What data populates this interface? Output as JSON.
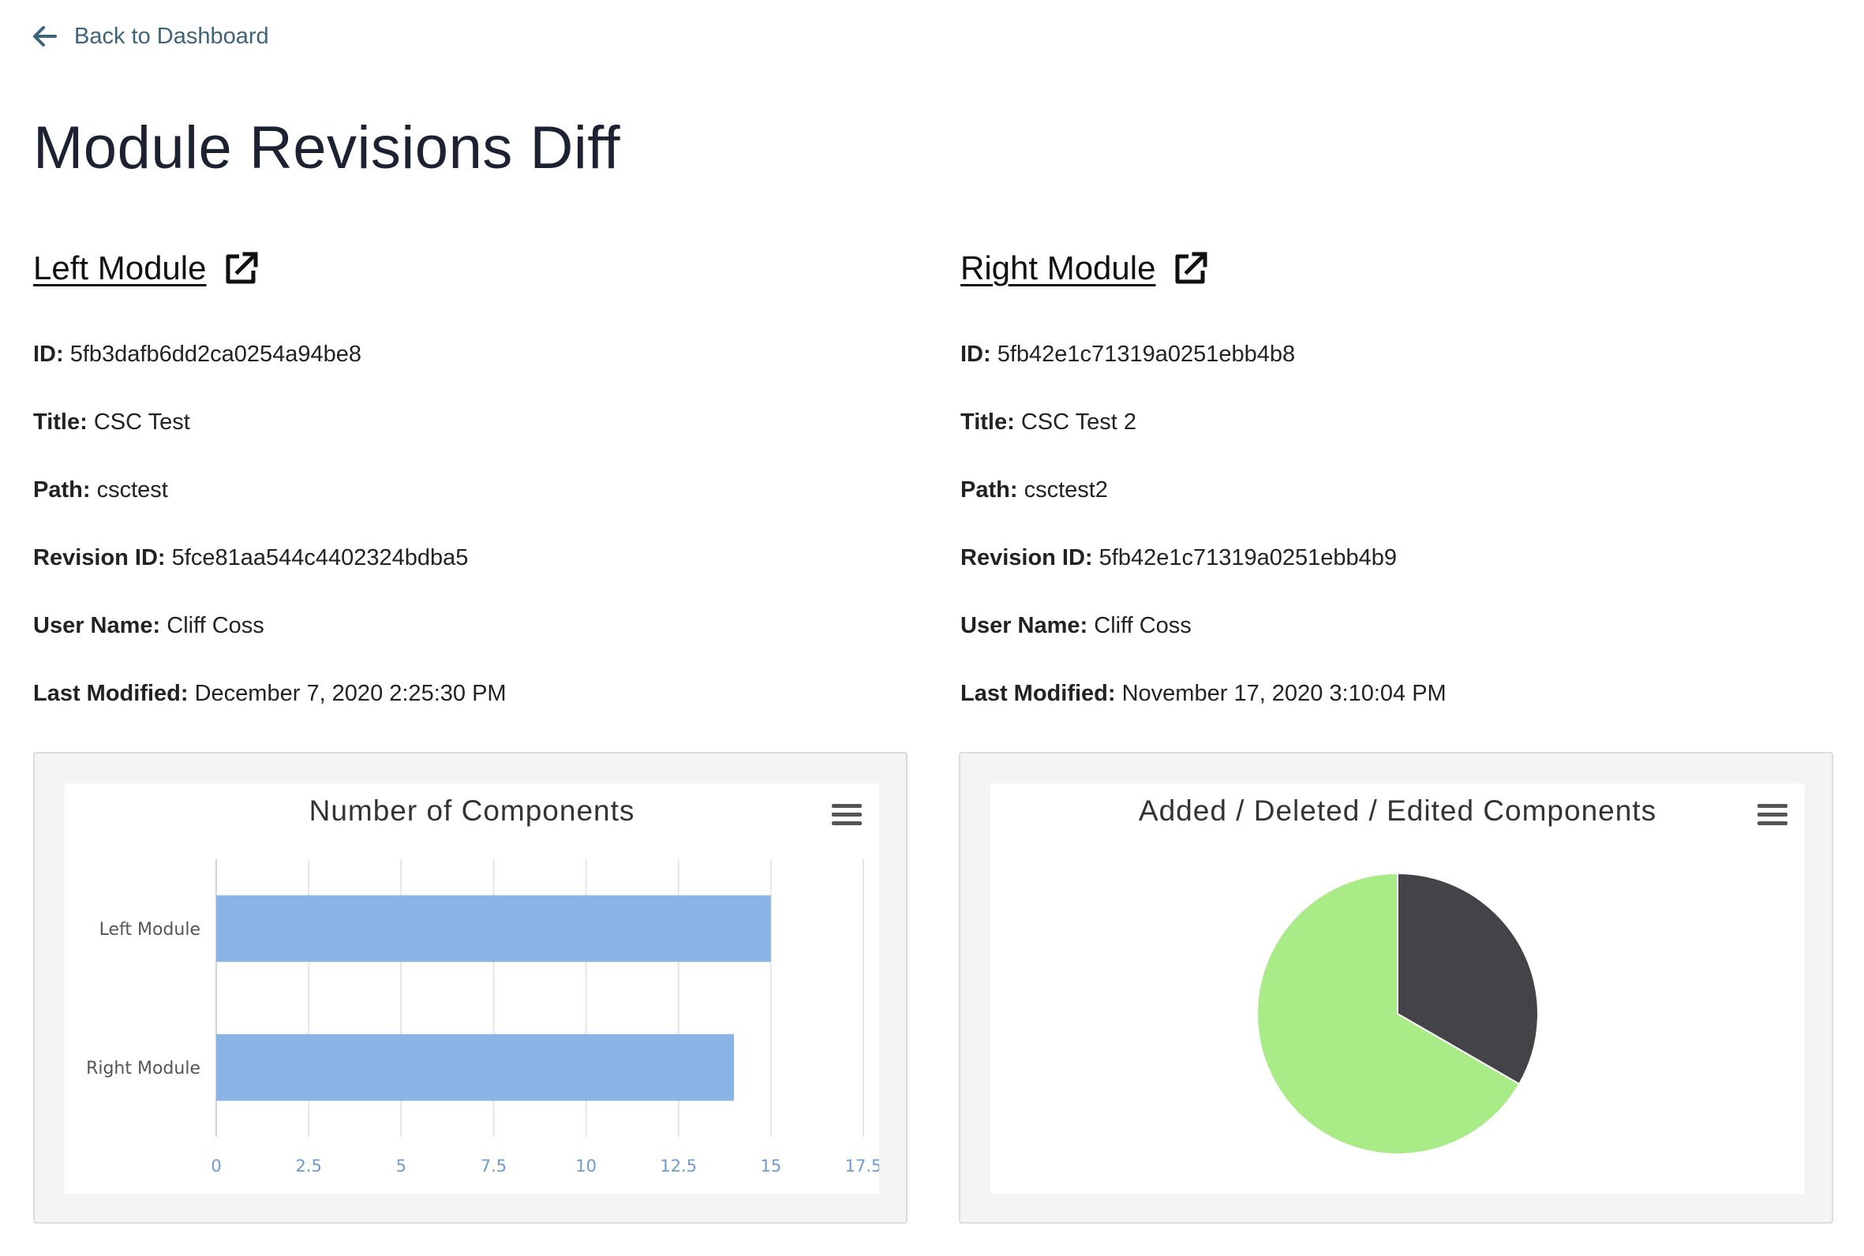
{
  "nav": {
    "back_label": "Back to Dashboard"
  },
  "page": {
    "title": "Module Revisions Diff"
  },
  "left_module": {
    "heading": "Left Module",
    "fields": [
      {
        "label": "ID:",
        "value": "5fb3dafb6dd2ca0254a94be8"
      },
      {
        "label": "Title:",
        "value": "CSC Test"
      },
      {
        "label": "Path:",
        "value": "csctest"
      },
      {
        "label": "Revision ID:",
        "value": "5fce81aa544c4402324bdba5"
      },
      {
        "label": "User Name:",
        "value": "Cliff Coss"
      },
      {
        "label": "Last Modified:",
        "value": "December 7, 2020 2:25:30 PM"
      }
    ]
  },
  "right_module": {
    "heading": "Right Module",
    "fields": [
      {
        "label": "ID:",
        "value": "5fb42e1c71319a0251ebb4b8"
      },
      {
        "label": "Title:",
        "value": "CSC Test 2"
      },
      {
        "label": "Path:",
        "value": "csctest2"
      },
      {
        "label": "Revision ID:",
        "value": "5fb42e1c71319a0251ebb4b9"
      },
      {
        "label": "User Name:",
        "value": "Cliff Coss"
      },
      {
        "label": "Last Modified:",
        "value": "November 17, 2020 3:10:04 PM"
      }
    ]
  },
  "icons": {
    "back": "arrow-left-icon",
    "external": "external-link-icon",
    "menu": "hamburger-menu-icon"
  },
  "colors": {
    "link": "#3d6478",
    "bar": "#89b4e5",
    "pie_dark": "#434348",
    "pie_green": "#a8eb87"
  },
  "chart_data": [
    {
      "type": "bar",
      "orientation": "horizontal",
      "title": "Number of Components",
      "categories": [
        "Left Module",
        "Right Module"
      ],
      "values": [
        15,
        14
      ],
      "xlim": [
        0,
        17.5
      ],
      "ticks": [
        "0",
        "2.5",
        "5",
        "7.5",
        "10",
        "12.5",
        "15",
        "17.5"
      ],
      "tick_values": [
        0,
        2.5,
        5,
        7.5,
        10,
        12.5,
        15,
        17.5
      ],
      "grid": true,
      "legend": "none"
    },
    {
      "type": "pie",
      "title": "Added / Deleted / Edited Components",
      "slices": [
        {
          "value": 1,
          "color": "#434348"
        },
        {
          "value": 2,
          "color": "#a8eb87"
        }
      ],
      "legend": "none"
    }
  ]
}
